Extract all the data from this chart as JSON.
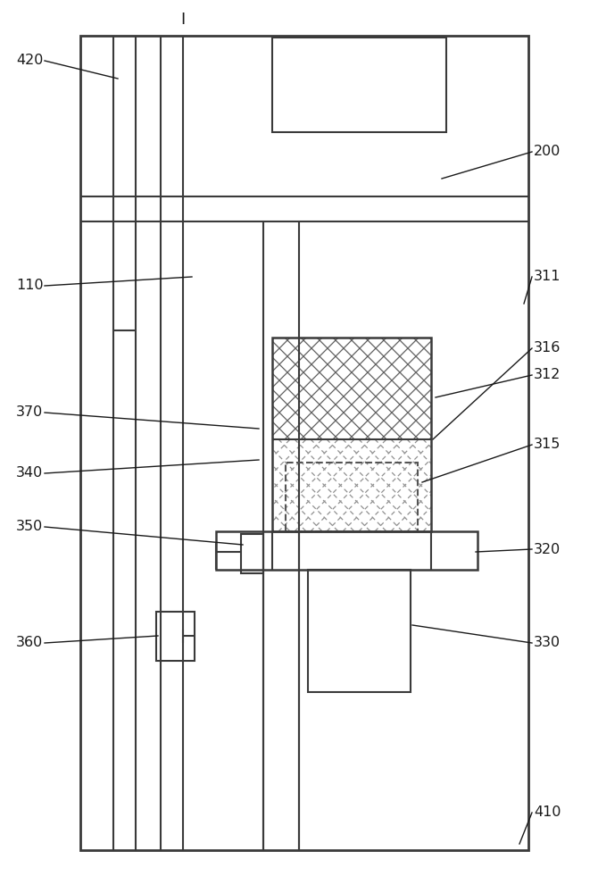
{
  "bg_color": "#ffffff",
  "line_color": "#3a3a3a",
  "label_color": "#1a1a1a",
  "fig_width": 6.7,
  "fig_height": 10.0,
  "dpi": 100
}
